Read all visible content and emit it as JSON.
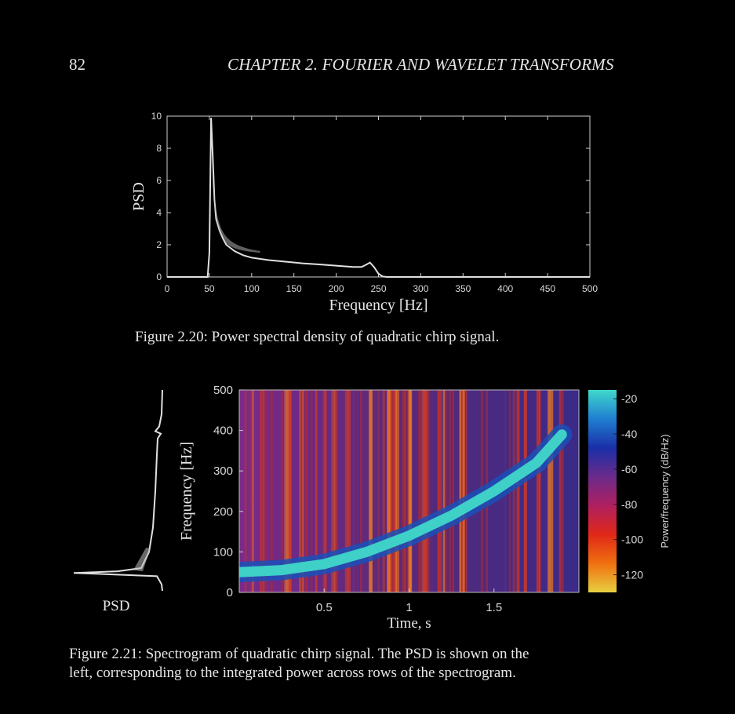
{
  "header": {
    "page_number": "82",
    "chapter_title": "CHAPTER 2.  FOURIER AND WAVELET TRANSFORMS"
  },
  "figures": [
    {
      "caption": "Figure 2.20: Power spectral density of quadratic chirp signal."
    },
    {
      "caption_line1": "Figure 2.21: Spectrogram of quadratic chirp signal.  The PSD is shown on the",
      "caption_line2": "left, corresponding to the integrated power across rows of the spectrogram."
    }
  ],
  "chart_data": [
    {
      "type": "line",
      "xlabel": "Frequency [Hz]",
      "ylabel": "PSD",
      "xlim": [
        0,
        500
      ],
      "ylim": [
        0,
        10
      ],
      "xticks": [
        "0",
        "50",
        "100",
        "150",
        "200",
        "250",
        "300",
        "350",
        "400",
        "450",
        "500"
      ],
      "yticks": [
        "0",
        "2",
        "4",
        "6",
        "8",
        "10"
      ],
      "grid": false,
      "line_color": "#e0e0e0",
      "x": [
        0,
        48,
        50,
        52,
        54,
        56,
        58,
        62,
        66,
        70,
        80,
        90,
        100,
        120,
        140,
        160,
        180,
        200,
        220,
        230,
        235,
        240,
        245,
        250,
        255,
        260,
        300,
        400,
        500
      ],
      "y": [
        0,
        0,
        1.5,
        9.9,
        7.5,
        4.8,
        3.6,
        2.9,
        2.4,
        2.0,
        1.6,
        1.35,
        1.2,
        1.05,
        0.95,
        0.85,
        0.78,
        0.7,
        0.62,
        0.62,
        0.75,
        0.9,
        0.6,
        0.2,
        0.03,
        0,
        0,
        0,
        0
      ]
    },
    {
      "type": "heatmap",
      "xlabel": "Time, s",
      "ylabel": "Frequency [Hz]",
      "xticks": [
        "0.5",
        "1",
        "1.5"
      ],
      "yticks": [
        "0",
        "100",
        "200",
        "300",
        "400",
        "500"
      ],
      "xlim": [
        0,
        2
      ],
      "ylim": [
        0,
        500
      ],
      "colorbar_label": "Power/frequency (dB/Hz)",
      "colorbar_ticks": [
        "-20",
        "-40",
        "-60",
        "-80",
        "-100",
        "-120"
      ],
      "colorbar_range": [
        -130,
        -15
      ],
      "ridge_time": [
        0,
        0.25,
        0.5,
        0.75,
        1.0,
        1.25,
        1.5,
        1.75,
        1.9
      ],
      "ridge_frequency": [
        50,
        55,
        70,
        100,
        140,
        190,
        250,
        320,
        390
      ],
      "side_panel_label": "PSD",
      "colors": {
        "background": "#5a2a7a",
        "ridge": "#3fd0c8",
        "stripe": "#d83a20",
        "colorbar": [
          "#40d8cc",
          "#1f7fd0",
          "#1a2fa8",
          "#6a2a8a",
          "#b02060",
          "#e02818",
          "#f07010",
          "#e8d040"
        ]
      }
    }
  ]
}
